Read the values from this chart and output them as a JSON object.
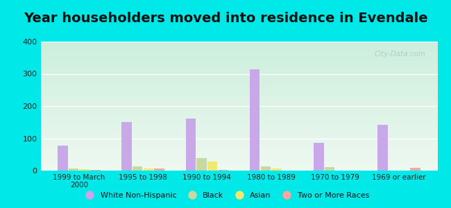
{
  "title": "Year householders moved into residence in Evendale",
  "categories": [
    "1999 to March\n2000",
    "1995 to 1998",
    "1990 to 1994",
    "1980 to 1989",
    "1970 to 1979",
    "1969 or earlier"
  ],
  "series": {
    "White Non-Hispanic": [
      78,
      150,
      162,
      313,
      85,
      142
    ],
    "Black": [
      7,
      12,
      38,
      12,
      10,
      0
    ],
    "Asian": [
      5,
      7,
      28,
      7,
      0,
      0
    ],
    "Two or More Races": [
      3,
      7,
      3,
      0,
      0,
      8
    ]
  },
  "colors": {
    "White Non-Hispanic": "#c8a8e8",
    "Black": "#c8d8a0",
    "Asian": "#f0e870",
    "Two or More Races": "#f8a8a0"
  },
  "ylim": [
    0,
    400
  ],
  "yticks": [
    0,
    100,
    200,
    300,
    400
  ],
  "bg_outer": "#00e8e8",
  "bg_plot_top": "#cceedd",
  "bg_plot_bottom": "#eef8f0",
  "title_fontsize": 14,
  "watermark": "City-Data.com",
  "bar_width": 0.17
}
